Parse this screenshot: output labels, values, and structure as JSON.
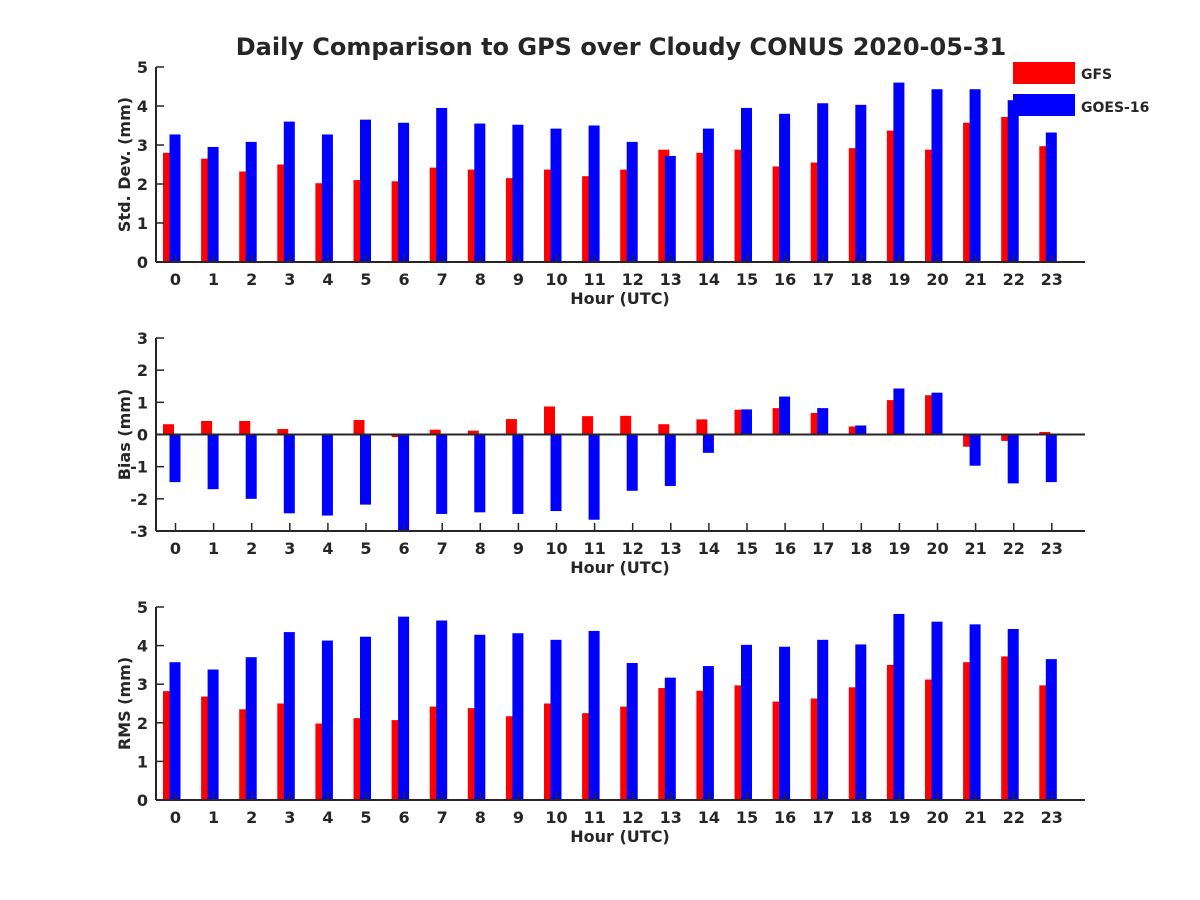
{
  "figure": {
    "title": "Daily Comparison to GPS over Cloudy CONUS 2020-05-31",
    "legend": [
      {
        "name": "GFS",
        "color": "#ff0000"
      },
      {
        "name": "GOES-16",
        "color": "#0000ff"
      }
    ]
  },
  "chart_data": [
    {
      "type": "bar",
      "title": "Daily Comparison to GPS over Cloudy CONUS 2020-05-31",
      "xlabel": "Hour (UTC)",
      "ylabel": "Std. Dev. (mm)",
      "ylim": [
        0,
        5
      ],
      "yticks": [
        0,
        1,
        2,
        3,
        4,
        5
      ],
      "categories": [
        "0",
        "1",
        "2",
        "3",
        "4",
        "5",
        "6",
        "7",
        "8",
        "9",
        "10",
        "11",
        "12",
        "13",
        "14",
        "15",
        "16",
        "17",
        "18",
        "19",
        "20",
        "21",
        "22",
        "23"
      ],
      "legend_position": "top-right",
      "grid": false,
      "series": [
        {
          "name": "GFS",
          "color": "#ff0000",
          "values": [
            2.8,
            2.65,
            2.32,
            2.5,
            2.02,
            2.1,
            2.07,
            2.42,
            2.37,
            2.15,
            2.37,
            2.2,
            2.37,
            2.88,
            2.8,
            2.88,
            2.45,
            2.55,
            2.92,
            3.37,
            2.88,
            3.57,
            3.72,
            2.97
          ]
        },
        {
          "name": "GOES-16",
          "color": "#0000ff",
          "values": [
            3.27,
            2.95,
            3.08,
            3.6,
            3.27,
            3.65,
            3.57,
            3.95,
            3.55,
            3.52,
            3.42,
            3.5,
            3.08,
            2.72,
            3.42,
            3.95,
            3.8,
            4.07,
            4.03,
            4.6,
            4.43,
            4.43,
            4.15,
            3.32
          ]
        }
      ]
    },
    {
      "type": "bar",
      "xlabel": "Hour (UTC)",
      "ylabel": "Bias (mm)",
      "ylim": [
        -3,
        3
      ],
      "yticks": [
        -3,
        -2,
        -1,
        0,
        1,
        2,
        3
      ],
      "categories": [
        "0",
        "1",
        "2",
        "3",
        "4",
        "5",
        "6",
        "7",
        "8",
        "9",
        "10",
        "11",
        "12",
        "13",
        "14",
        "15",
        "16",
        "17",
        "18",
        "19",
        "20",
        "21",
        "22",
        "23"
      ],
      "grid": false,
      "series": [
        {
          "name": "GFS",
          "color": "#ff0000",
          "values": [
            0.32,
            0.42,
            0.42,
            0.17,
            0.03,
            0.45,
            -0.08,
            0.15,
            0.12,
            0.48,
            0.87,
            0.57,
            0.58,
            0.32,
            0.47,
            0.77,
            0.82,
            0.67,
            0.25,
            1.07,
            1.22,
            -0.38,
            -0.2,
            0.08
          ]
        },
        {
          "name": "GOES-16",
          "color": "#0000ff",
          "values": [
            -1.48,
            -1.7,
            -2.0,
            -2.45,
            -2.52,
            -2.18,
            -3.0,
            -2.47,
            -2.42,
            -2.47,
            -2.38,
            -2.65,
            -1.75,
            -1.6,
            -0.57,
            0.78,
            1.18,
            0.82,
            0.28,
            1.43,
            1.3,
            -0.97,
            -1.52,
            -1.48
          ]
        }
      ]
    },
    {
      "type": "bar",
      "xlabel": "Hour (UTC)",
      "ylabel": "RMS (mm)",
      "ylim": [
        0,
        5
      ],
      "yticks": [
        0,
        1,
        2,
        3,
        4,
        5
      ],
      "categories": [
        "0",
        "1",
        "2",
        "3",
        "4",
        "5",
        "6",
        "7",
        "8",
        "9",
        "10",
        "11",
        "12",
        "13",
        "14",
        "15",
        "16",
        "17",
        "18",
        "19",
        "20",
        "21",
        "22",
        "23"
      ],
      "grid": false,
      "series": [
        {
          "name": "GFS",
          "color": "#ff0000",
          "values": [
            2.82,
            2.68,
            2.35,
            2.5,
            1.98,
            2.12,
            2.07,
            2.42,
            2.38,
            2.17,
            2.5,
            2.25,
            2.42,
            2.9,
            2.83,
            2.97,
            2.55,
            2.63,
            2.92,
            3.5,
            3.12,
            3.57,
            3.72,
            2.97
          ]
        },
        {
          "name": "GOES-16",
          "color": "#0000ff",
          "values": [
            3.57,
            3.38,
            3.7,
            4.35,
            4.13,
            4.23,
            4.75,
            4.65,
            4.28,
            4.32,
            4.15,
            4.38,
            3.55,
            3.17,
            3.47,
            4.02,
            3.97,
            4.15,
            4.03,
            4.82,
            4.62,
            4.55,
            4.43,
            3.65
          ]
        }
      ]
    }
  ]
}
